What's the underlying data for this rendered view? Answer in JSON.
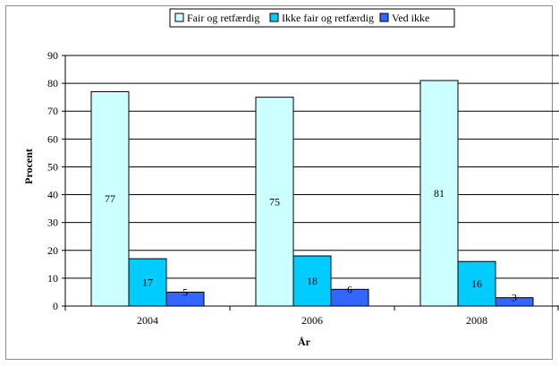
{
  "chart_data": {
    "type": "bar",
    "title": "",
    "xlabel": "År",
    "ylabel": "Procent",
    "categories": [
      "2004",
      "2006",
      "2008"
    ],
    "series": [
      {
        "name": "Fair og retfærdig",
        "values": [
          77,
          75,
          81
        ],
        "color": "#ccffff"
      },
      {
        "name": "Ikke fair og retfærdig",
        "values": [
          17,
          18,
          16
        ],
        "color": "#00ccff"
      },
      {
        "name": "Ved ikke",
        "values": [
          5,
          6,
          3
        ],
        "color": "#3366ff"
      }
    ],
    "ylim": [
      0,
      90
    ],
    "yticks": [
      0,
      10,
      20,
      30,
      40,
      50,
      60,
      70,
      80,
      90
    ],
    "grid": true,
    "legend_position": "top"
  }
}
